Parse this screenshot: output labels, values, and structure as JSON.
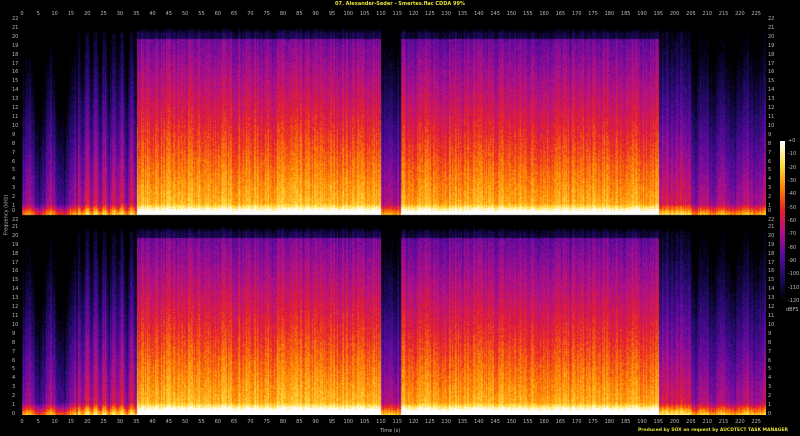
{
  "title": "07. Alexander-Seder - Smertes.flac CDDA 99%",
  "footer": "Produced by SOX on request by AUCDTECT TASK MANAGER",
  "chart_data": {
    "type": "heatmap",
    "title": "07. Alexander-Seder - Smertes.flac CDDA 99%",
    "xlabel": "Time (s)",
    "ylabel": "Frequency (kHz)",
    "colorbar_label": "dBFS",
    "channels": 2,
    "xlim": [
      0,
      228
    ],
    "ylim": [
      0,
      22
    ],
    "x_ticks": [
      0,
      5,
      10,
      15,
      20,
      25,
      30,
      35,
      40,
      45,
      50,
      55,
      60,
      65,
      70,
      75,
      80,
      85,
      90,
      95,
      100,
      105,
      110,
      115,
      120,
      125,
      130,
      135,
      140,
      145,
      150,
      155,
      160,
      165,
      170,
      175,
      180,
      185,
      190,
      195,
      200,
      205,
      210,
      215,
      220,
      225
    ],
    "y_ticks": [
      0,
      1,
      2,
      3,
      4,
      5,
      6,
      7,
      8,
      9,
      10,
      11,
      12,
      13,
      14,
      15,
      16,
      17,
      18,
      19,
      20,
      21,
      22
    ],
    "colorbar_ticks": [
      "+0",
      "-10",
      "-20",
      "-30",
      "-40",
      "-50",
      "-60",
      "-70",
      "-80",
      "-90",
      "-100",
      "-110",
      "-120"
    ],
    "colorbar_range": [
      -120,
      0
    ],
    "colormap": [
      "#000000",
      "#1a0a5e",
      "#5a0aa0",
      "#b0108a",
      "#e8202a",
      "#ff8a00",
      "#ffe040",
      "#ffffff"
    ]
  }
}
